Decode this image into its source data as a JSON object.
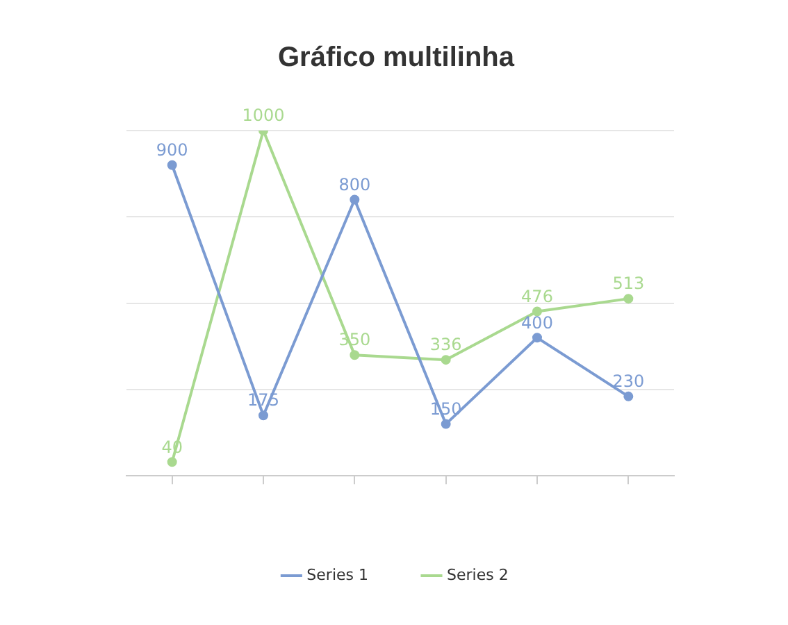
{
  "chart_data": {
    "type": "line",
    "title": "Gráfico multilinha",
    "categories": [
      null,
      null,
      null,
      null,
      null,
      null
    ],
    "series": [
      {
        "name": "Series 1",
        "color": "#7b9bd2",
        "values": [
          900,
          175,
          800,
          150,
          400,
          230
        ]
      },
      {
        "name": "Series 2",
        "color": "#a9d98f",
        "values": [
          40,
          1000,
          350,
          336,
          476,
          513
        ]
      }
    ],
    "ylim": [
      0,
      1000
    ],
    "yticks": [
      {
        "value": 0,
        "label": null
      },
      {
        "value": 250,
        "label": null
      },
      {
        "value": 500,
        "label": null
      },
      {
        "value": 750,
        "label": null
      },
      {
        "value": 1000,
        "label": null
      }
    ],
    "grid": "y",
    "data_labels": true,
    "legend": "bottom",
    "marker": "circle",
    "line_style": "solid"
  }
}
